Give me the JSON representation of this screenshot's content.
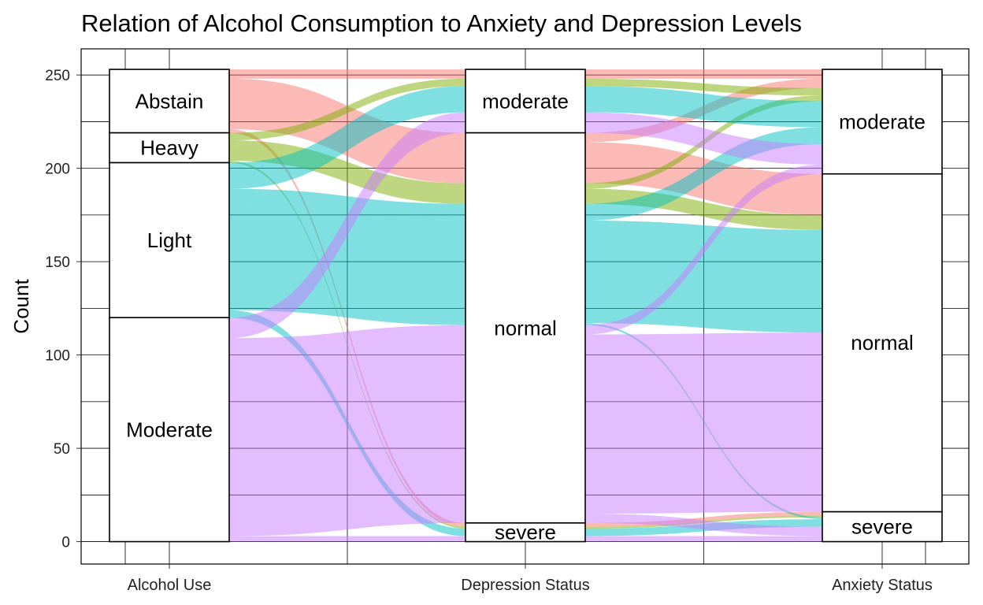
{
  "chart_data": {
    "type": "alluvial",
    "title": "Relation of Alcohol Consumption to Anxiety and Depression Levels",
    "xlabel": "",
    "ylabel": "Count",
    "ylim": [
      -12,
      264
    ],
    "yticks": [
      0,
      50,
      100,
      150,
      200,
      250
    ],
    "grid": true,
    "fill_by": "Alcohol Use",
    "axes": [
      {
        "name": "Alcohol Use",
        "strata": [
          {
            "label": "Abstain",
            "count": 34
          },
          {
            "label": "Heavy",
            "count": 16
          },
          {
            "label": "Light",
            "count": 83
          },
          {
            "label": "Moderate",
            "count": 120
          }
        ]
      },
      {
        "name": "Depression Status",
        "strata": [
          {
            "label": "moderate",
            "count": 34
          },
          {
            "label": "normal",
            "count": 209
          },
          {
            "label": "severe",
            "count": 10
          }
        ]
      },
      {
        "name": "Anxiety Status",
        "strata": [
          {
            "label": "moderate",
            "count": 56
          },
          {
            "label": "normal",
            "count": 181
          },
          {
            "label": "severe",
            "count": 16
          }
        ]
      }
    ],
    "colors": {
      "Abstain": "#F8766D",
      "Heavy": "#7CAE00",
      "Light": "#00BFC4",
      "Moderate": "#C77CFF"
    },
    "flows": [
      {
        "alcohol": "Abstain",
        "depression": "moderate",
        "anxiety": "moderate",
        "count": 5
      },
      {
        "alcohol": "Abstain",
        "depression": "normal",
        "anxiety": "moderate",
        "count": 5
      },
      {
        "alcohol": "Abstain",
        "depression": "normal",
        "anxiety": "normal",
        "count": 22
      },
      {
        "alcohol": "Abstain",
        "depression": "severe",
        "anxiety": "severe",
        "count": 2
      },
      {
        "alcohol": "Heavy",
        "depression": "moderate",
        "anxiety": "moderate",
        "count": 4
      },
      {
        "alcohol": "Heavy",
        "depression": "normal",
        "anxiety": "moderate",
        "count": 3
      },
      {
        "alcohol": "Heavy",
        "depression": "normal",
        "anxiety": "normal",
        "count": 8
      },
      {
        "alcohol": "Heavy",
        "depression": "severe",
        "anxiety": "severe",
        "count": 1
      },
      {
        "alcohol": "Light",
        "depression": "moderate",
        "anxiety": "moderate",
        "count": 14
      },
      {
        "alcohol": "Light",
        "depression": "normal",
        "anxiety": "moderate",
        "count": 9
      },
      {
        "alcohol": "Light",
        "depression": "normal",
        "anxiety": "normal",
        "count": 55
      },
      {
        "alcohol": "Light",
        "depression": "normal",
        "anxiety": "severe",
        "count": 1
      },
      {
        "alcohol": "Light",
        "depression": "severe",
        "anxiety": "severe",
        "count": 4
      },
      {
        "alcohol": "Moderate",
        "depression": "moderate",
        "anxiety": "moderate",
        "count": 11
      },
      {
        "alcohol": "Moderate",
        "depression": "normal",
        "anxiety": "moderate",
        "count": 5
      },
      {
        "alcohol": "Moderate",
        "depression": "normal",
        "anxiety": "normal",
        "count": 96
      },
      {
        "alcohol": "Moderate",
        "depression": "normal",
        "anxiety": "severe",
        "count": 5
      },
      {
        "alcohol": "Moderate",
        "depression": "severe",
        "anxiety": "severe",
        "count": 3
      }
    ]
  }
}
